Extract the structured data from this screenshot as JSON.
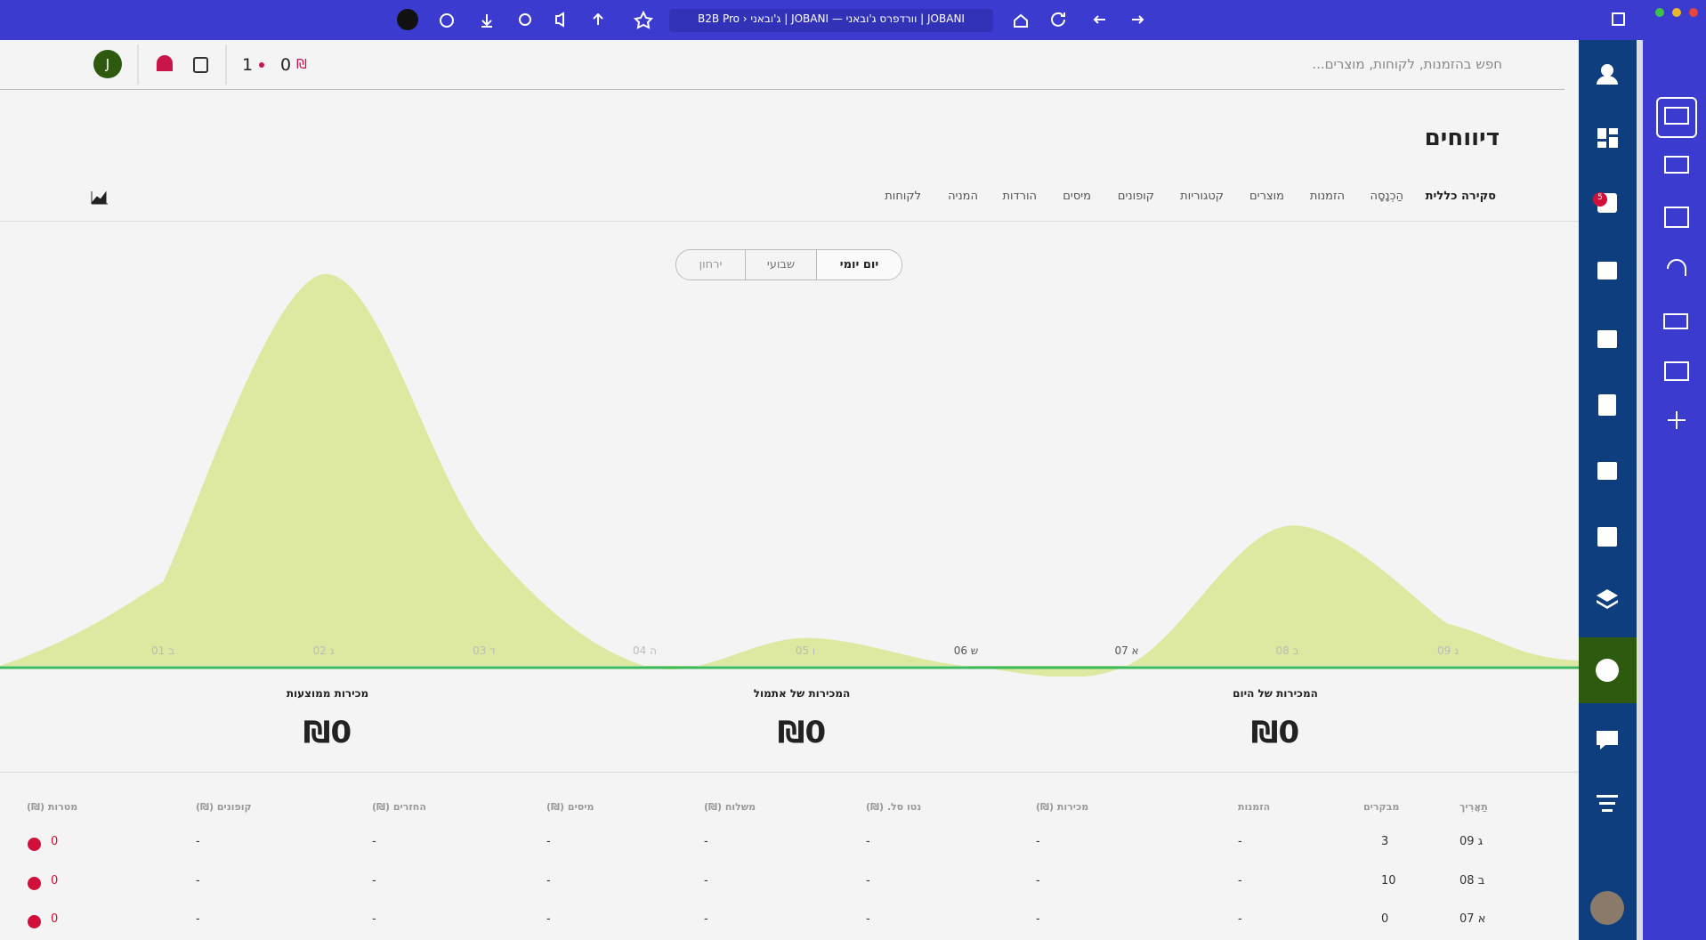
{
  "browser": {
    "tab_title": "B2B Pro › ג'ובאני | JOBANI — וורדפרס ג'ובאני | JOBANI"
  },
  "header": {
    "search_placeholder": "חפש בהזמנות, לקוחות, מוצרים...",
    "currency_count": "0",
    "currency_symbol": "₪",
    "orders_count": "1",
    "avatar": "J"
  },
  "sidebar": {
    "badge": "5"
  },
  "page": {
    "title": "דיווחים",
    "tabs": [
      "סקירה כללית",
      "הַכְנָסָה",
      "הזמנות",
      "מוצרים",
      "קטגוריות",
      "קופונים",
      "מיסים",
      "הורדות",
      "המניה",
      "לקוחות"
    ],
    "ranges": [
      "יום יומי",
      "שבועי",
      "ירחון"
    ]
  },
  "chart_data": {
    "type": "area",
    "categories": [
      "01 ב",
      "02 ג",
      "03 ד",
      "04 ה",
      "05 ו",
      "06 ש",
      "07 א",
      "08 ב",
      "09 ג"
    ],
    "values": [
      6,
      28,
      9,
      0,
      2,
      0,
      0,
      10,
      3
    ],
    "color": "#dde9a0"
  },
  "stats": [
    {
      "label": "המכירות של היום",
      "value": "₪0"
    },
    {
      "label": "המכירות של אתמול",
      "value": "₪0"
    },
    {
      "label": "מכירות ממוצעות",
      "value": "₪0"
    }
  ],
  "table": {
    "headers": [
      "תַאֲרִיך",
      "מבקרים",
      "הזמנות",
      "מכירות (₪)",
      "נטו סל. (₪)",
      "משלוח (₪)",
      "מיסים (₪)",
      "החזרים (₪)",
      "קופונים (₪)",
      "מטרות (₪)"
    ],
    "rows": [
      [
        "09 ג",
        "3",
        "-",
        "-",
        "-",
        "-",
        "-",
        "-",
        "-",
        "0"
      ],
      [
        "08 ב",
        "10",
        "-",
        "-",
        "-",
        "-",
        "-",
        "-",
        "-",
        "0"
      ],
      [
        "07 א",
        "0",
        "-",
        "-",
        "-",
        "-",
        "-",
        "-",
        "-",
        "0"
      ]
    ]
  }
}
